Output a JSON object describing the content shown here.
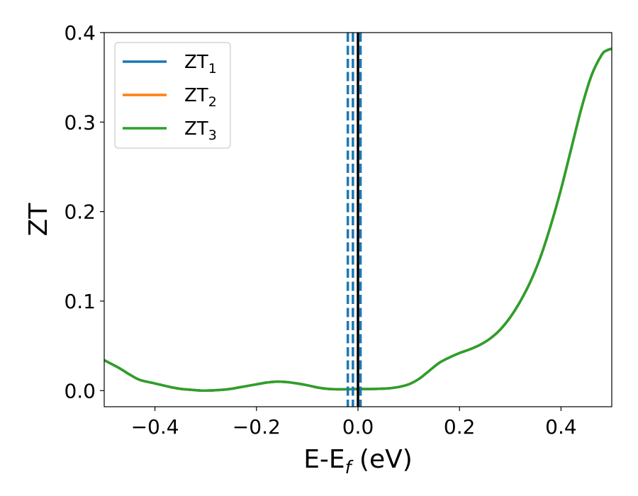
{
  "chart_data": {
    "type": "line",
    "xlabel": "E-E",
    "xlabel_sub": "f",
    "xlabel_unit": " (eV)",
    "ylabel": "ZT",
    "xlim": [
      -0.5,
      0.5
    ],
    "ylim": [
      -0.018,
      0.4
    ],
    "xticks": [
      -0.4,
      -0.2,
      0.0,
      0.2,
      0.4
    ],
    "xtick_labels": [
      "−0.4",
      "−0.2",
      "0.0",
      "0.2",
      "0.4"
    ],
    "yticks": [
      0.0,
      0.1,
      0.2,
      0.3,
      0.4
    ],
    "ytick_labels": [
      "0.0",
      "0.1",
      "0.2",
      "0.3",
      "0.4"
    ],
    "grid": false,
    "legend_position": "top-left",
    "series": [
      {
        "name": "ZT",
        "sub": "1",
        "color": "#1f77b4"
      },
      {
        "name": "ZT",
        "sub": "2",
        "color": "#ff7f0e"
      },
      {
        "name": "ZT",
        "sub": "3",
        "color": "#2ca02c"
      }
    ],
    "curve": {
      "x": [
        -0.5,
        -0.47,
        -0.45,
        -0.43,
        -0.4,
        -0.37,
        -0.35,
        -0.32,
        -0.3,
        -0.27,
        -0.25,
        -0.22,
        -0.2,
        -0.18,
        -0.16,
        -0.14,
        -0.12,
        -0.1,
        -0.08,
        -0.06,
        -0.04,
        -0.02,
        0.0,
        0.02,
        0.04,
        0.06,
        0.08,
        0.1,
        0.12,
        0.14,
        0.16,
        0.18,
        0.2,
        0.22,
        0.24,
        0.26,
        0.28,
        0.3,
        0.32,
        0.34,
        0.36,
        0.38,
        0.4,
        0.42,
        0.44,
        0.46,
        0.48,
        0.49,
        0.5
      ],
      "y": [
        0.034,
        0.025,
        0.018,
        0.012,
        0.008,
        0.004,
        0.002,
        0.0005,
        0.0,
        0.0008,
        0.002,
        0.005,
        0.007,
        0.009,
        0.01,
        0.0095,
        0.008,
        0.006,
        0.0035,
        0.002,
        0.0015,
        0.0015,
        0.0018,
        0.0018,
        0.002,
        0.0025,
        0.004,
        0.007,
        0.013,
        0.022,
        0.031,
        0.037,
        0.042,
        0.046,
        0.051,
        0.058,
        0.068,
        0.082,
        0.1,
        0.122,
        0.15,
        0.185,
        0.225,
        0.27,
        0.315,
        0.352,
        0.375,
        0.38,
        0.382
      ]
    },
    "vertical_lines": [
      {
        "x": -0.02,
        "style": "dashed",
        "color": "#1f77b4"
      },
      {
        "x": -0.01,
        "style": "dashed",
        "color": "#1f77b4"
      },
      {
        "x": 0.005,
        "style": "dashed",
        "color": "#1f77b4"
      },
      {
        "x": 0.0,
        "style": "solid",
        "color": "#000000"
      }
    ]
  }
}
